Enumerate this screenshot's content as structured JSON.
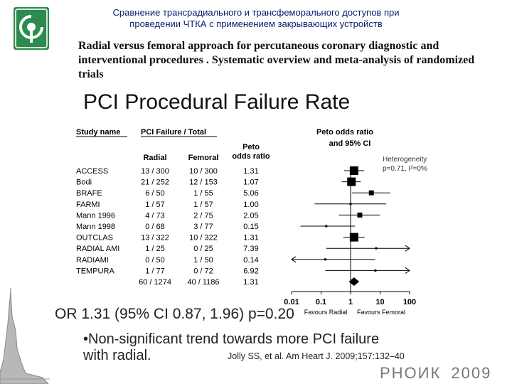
{
  "header": {
    "ru_title_line1": "Сравнение трансрадиального и трансфеморального доступов при",
    "ru_title_line2": "проведении ЧТКА с применением закрывающих устройств",
    "en_title": "Radial versus femoral approach for percutaneous coronary diagnostic and interventional procedures . Systematic overview and meta-analysis of randomized trials"
  },
  "slide": {
    "title": "PCI Procedural Failure Rate"
  },
  "chart_data": {
    "type": "table",
    "col_study": "Study name",
    "col_failure": "PCI Failure / Total",
    "col_radial": "Radial",
    "col_femoral": "Femoral",
    "col_peto_1": "Peto",
    "col_peto_2": "odds ratio",
    "plot_title_1": "Peto odds ratio",
    "plot_title_2": "and 95% CI",
    "heterogeneity_1": "Heterogeneity",
    "heterogeneity_2": "p=0.71, I²=0%",
    "x_axis_scale": "log",
    "x_ticks": [
      "0.01",
      "0.1",
      "1",
      "10",
      "100"
    ],
    "x_tick_values": [
      0.01,
      0.1,
      1,
      10,
      100
    ],
    "favours_left": "Favours Radial",
    "favours_right": "Favours Femoral",
    "rows": [
      {
        "study": "ACCESS",
        "radial": "13 / 300",
        "femoral": "10 / 300",
        "or_text": "1.31",
        "or": 1.31,
        "lo": 0.6,
        "hi": 2.9,
        "weight": "big"
      },
      {
        "study": "Bodi",
        "radial": "21 / 252",
        "femoral": "12 / 153",
        "or_text": "1.07",
        "or": 1.07,
        "lo": 0.5,
        "hi": 2.2,
        "weight": "big"
      },
      {
        "study": "BRAFE",
        "radial": "6 / 50",
        "femoral": "1 / 55",
        "or_text": "5.06",
        "or": 5.06,
        "lo": 1.1,
        "hi": 22,
        "weight": "small"
      },
      {
        "study": "FARMI",
        "radial": "1 / 57",
        "femoral": "1 / 57",
        "or_text": "1.00",
        "or": 1.0,
        "lo": 0.06,
        "hi": 16,
        "weight": "tiny"
      },
      {
        "study": "Mann 1996",
        "radial": "4 / 73",
        "femoral": "2 / 75",
        "or_text": "2.05",
        "or": 2.05,
        "lo": 0.4,
        "hi": 10,
        "weight": "small"
      },
      {
        "study": "Mann 1998",
        "radial": "0 / 68",
        "femoral": "3 / 77",
        "or_text": "0.15",
        "or": 0.15,
        "lo": 0.02,
        "hi": 1.4,
        "weight": "tiny"
      },
      {
        "study": "OUTCLAS",
        "radial": "13 / 322",
        "femoral": "10 / 322",
        "or_text": "1.31",
        "or": 1.31,
        "lo": 0.57,
        "hi": 3.0,
        "weight": "big"
      },
      {
        "study": "RADIAL AMI",
        "radial": "1 / 25",
        "femoral": "0 / 25",
        "or_text": "7.39",
        "or": 7.39,
        "lo": 0.15,
        "hi": 370,
        "weight": "tiny"
      },
      {
        "study": "RADIAMI",
        "radial": "0 / 50",
        "femoral": "1 / 50",
        "or_text": "0.14",
        "or": 0.14,
        "lo": 0.003,
        "hi": 6.8,
        "weight": "tiny"
      },
      {
        "study": "TEMPURA",
        "radial": "1 / 77",
        "femoral": "0 / 72",
        "or_text": "6.92",
        "or": 6.92,
        "lo": 0.14,
        "hi": 350,
        "weight": "tiny"
      }
    ],
    "total": {
      "radial": "60 / 1274",
      "femoral": "40 / 1186",
      "or_text": "1.31",
      "or": 1.31,
      "lo": 0.87,
      "hi": 1.96
    }
  },
  "summary": {
    "ci_text": "OR 1.31 (95% CI 0.87, 1.96) p=0.20",
    "bullet_line1": "•Non-significant trend towards more PCI failure",
    "bullet_line2": "with radial.",
    "citation": "Jolly SS, et al.  Am Heart J. 2009;157:132–40"
  },
  "footer": {
    "brand": "РНОИК",
    "year": "2009"
  }
}
